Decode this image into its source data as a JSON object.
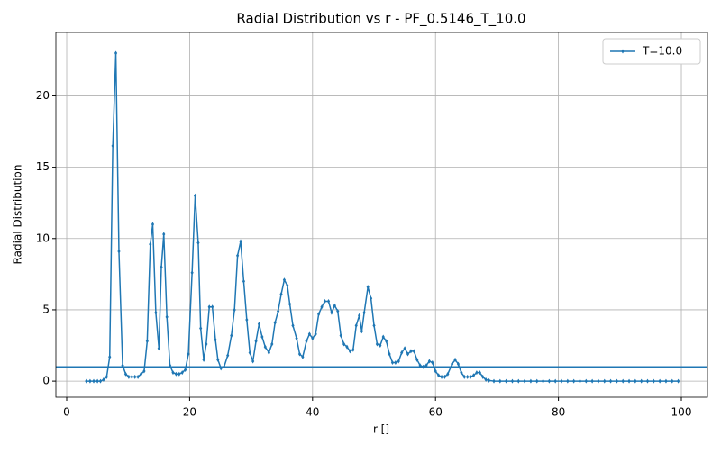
{
  "chart_data": {
    "type": "line",
    "title": "Radial Distribution vs r - PF_0.5146_T_10.0",
    "x_label": "r []",
    "y_label": "Radial Distribution",
    "x": [
      3.2,
      3.8,
      4.4,
      5.0,
      5.5,
      6.0,
      6.5,
      7.0,
      7.5,
      8.0,
      8.5,
      9.1,
      9.6,
      10.1,
      10.6,
      11.1,
      11.6,
      12.1,
      12.6,
      13.1,
      13.6,
      14.0,
      14.5,
      15.0,
      15.4,
      15.8,
      16.3,
      16.8,
      17.3,
      17.8,
      18.3,
      18.8,
      19.3,
      19.8,
      20.4,
      20.9,
      21.4,
      21.8,
      22.3,
      22.7,
      23.2,
      23.7,
      24.2,
      24.6,
      25.1,
      25.6,
      26.2,
      26.8,
      27.3,
      27.8,
      28.3,
      28.8,
      29.3,
      29.8,
      30.3,
      30.8,
      31.3,
      31.8,
      32.3,
      32.9,
      33.4,
      33.9,
      34.4,
      34.9,
      35.4,
      35.9,
      36.3,
      36.8,
      37.4,
      37.9,
      38.4,
      39.0,
      39.5,
      40.0,
      40.5,
      41.0,
      41.5,
      42.0,
      42.6,
      43.1,
      43.6,
      44.1,
      44.6,
      45.1,
      45.6,
      46.1,
      46.6,
      47.1,
      47.6,
      48.0,
      48.4,
      49.0,
      49.5,
      50.0,
      50.5,
      51.0,
      51.5,
      52.0,
      52.5,
      53.0,
      53.5,
      54.0,
      54.5,
      55.0,
      55.5,
      56.0,
      56.5,
      57.0,
      57.5,
      58.0,
      58.5,
      59.0,
      59.5,
      60.0,
      60.5,
      61.0,
      61.5,
      62.0,
      62.7,
      63.2,
      63.7,
      64.2,
      64.7,
      65.2,
      65.7,
      66.2,
      66.7,
      67.2,
      67.7,
      68.2,
      68.7,
      69.5,
      70.5,
      71.5,
      72.5,
      73.5,
      74.5,
      75.5,
      76.5,
      77.5,
      78.5,
      79.5,
      80.5,
      81.5,
      82.5,
      83.5,
      84.5,
      85.5,
      86.5,
      87.5,
      88.5,
      89.5,
      90.5,
      91.5,
      92.5,
      93.5,
      94.5,
      95.5,
      96.5,
      97.5,
      98.5,
      99.5
    ],
    "series": [
      {
        "name": "T=10.0",
        "color": "#1f77b4",
        "values": [
          0,
          0,
          0,
          0,
          0,
          0.1,
          0.3,
          1.7,
          16.5,
          23.0,
          9.1,
          1.1,
          0.5,
          0.3,
          0.3,
          0.3,
          0.3,
          0.5,
          0.7,
          2.8,
          9.6,
          11.0,
          4.8,
          2.3,
          8.0,
          10.3,
          4.5,
          1.1,
          0.6,
          0.5,
          0.5,
          0.6,
          0.8,
          1.9,
          7.6,
          13.0,
          9.7,
          3.7,
          1.5,
          2.6,
          5.2,
          5.2,
          2.9,
          1.5,
          0.9,
          1.0,
          1.8,
          3.2,
          5.0,
          8.8,
          9.8,
          7.0,
          4.3,
          2.0,
          1.4,
          2.8,
          4.0,
          3.1,
          2.4,
          2.0,
          2.6,
          4.1,
          4.9,
          6.1,
          7.1,
          6.7,
          5.4,
          3.9,
          3.0,
          1.9,
          1.7,
          2.8,
          3.3,
          3.0,
          3.3,
          4.7,
          5.2,
          5.6,
          5.6,
          4.8,
          5.3,
          4.9,
          3.2,
          2.6,
          2.4,
          2.1,
          2.2,
          3.9,
          4.6,
          3.5,
          4.8,
          6.6,
          5.8,
          3.9,
          2.6,
          2.5,
          3.1,
          2.8,
          1.9,
          1.3,
          1.3,
          1.4,
          2.0,
          2.3,
          1.9,
          2.1,
          2.1,
          1.5,
          1.1,
          1.0,
          1.1,
          1.4,
          1.3,
          0.7,
          0.4,
          0.3,
          0.3,
          0.5,
          1.2,
          1.5,
          1.2,
          0.6,
          0.3,
          0.3,
          0.3,
          0.4,
          0.6,
          0.6,
          0.3,
          0.1,
          0.05,
          0,
          0,
          0,
          0,
          0,
          0,
          0,
          0,
          0,
          0,
          0,
          0,
          0,
          0,
          0,
          0,
          0,
          0,
          0,
          0,
          0,
          0,
          0,
          0,
          0,
          0,
          0,
          0,
          0,
          0,
          0
        ]
      }
    ],
    "hline": 1,
    "xlim": [
      -1.76,
      104.25
    ],
    "ylim": [
      -1.13,
      24.45
    ],
    "xticks": [
      0,
      20,
      40,
      60,
      80,
      100
    ],
    "yticks": [
      0,
      5,
      10,
      15,
      20
    ],
    "grid": true,
    "legend": "upper-right"
  }
}
